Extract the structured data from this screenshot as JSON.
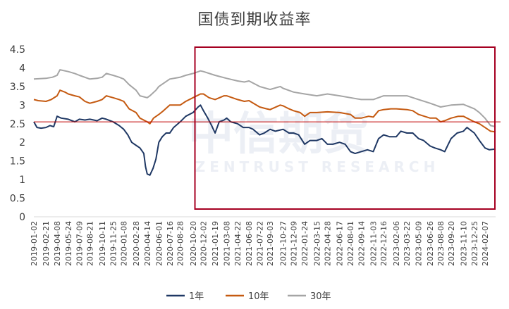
{
  "chart_data": {
    "type": "line",
    "title": "国债到期收益率",
    "xlabel": "",
    "ylabel": "",
    "ylim": [
      0,
      4.5
    ],
    "yticks": [
      "0",
      "0.5",
      "1",
      "1.5",
      "2",
      "2.5",
      "3",
      "3.5",
      "4",
      "4.5"
    ],
    "x_start": "2019-01-02",
    "x_end": "2024-03-22",
    "xtick_labels": [
      "2019-01-02",
      "2019-02-21",
      "2019-04-08",
      "2019-05-24",
      "2019-07-09",
      "2019-08-21",
      "2019-10-11",
      "2019-11-25",
      "2020-01-08",
      "2020-02-28",
      "2020-04-14",
      "2020-06-01",
      "2020-07-16",
      "2020-08-28",
      "2020-10-20",
      "2020-12-02",
      "2021-01-19",
      "2021-03-08",
      "2021-04-22",
      "2021-06-08",
      "2021-07-22",
      "2021-09-03",
      "2021-10-27",
      "2021-12-09",
      "2022-01-24",
      "2022-03-15",
      "2022-04-28",
      "2022-06-17",
      "2022-08-01",
      "2022-09-14",
      "2022-11-03",
      "2022-12-16",
      "2023-02-06",
      "2023-03-22",
      "2023-05-09",
      "2023-06-26",
      "2023-08-08",
      "2023-09-20",
      "2023-11-10",
      "2023-12-25",
      "2024-02-07"
    ],
    "series": [
      {
        "name": "1年",
        "color": "#1f3864",
        "points": [
          [
            "2019-01-02",
            2.55
          ],
          [
            "2019-01-15",
            2.4
          ],
          [
            "2019-02-01",
            2.38
          ],
          [
            "2019-02-21",
            2.4
          ],
          [
            "2019-03-10",
            2.45
          ],
          [
            "2019-03-25",
            2.42
          ],
          [
            "2019-04-08",
            2.7
          ],
          [
            "2019-04-25",
            2.65
          ],
          [
            "2019-05-24",
            2.62
          ],
          [
            "2019-06-20",
            2.55
          ],
          [
            "2019-07-09",
            2.62
          ],
          [
            "2019-08-01",
            2.6
          ],
          [
            "2019-08-21",
            2.62
          ],
          [
            "2019-09-20",
            2.58
          ],
          [
            "2019-10-11",
            2.65
          ],
          [
            "2019-10-28",
            2.62
          ],
          [
            "2019-11-25",
            2.55
          ],
          [
            "2019-12-20",
            2.45
          ],
          [
            "2020-01-08",
            2.35
          ],
          [
            "2020-01-25",
            2.2
          ],
          [
            "2020-02-10",
            2.0
          ],
          [
            "2020-02-28",
            1.92
          ],
          [
            "2020-03-15",
            1.85
          ],
          [
            "2020-03-31",
            1.7
          ],
          [
            "2020-04-07",
            1.35
          ],
          [
            "2020-04-14",
            1.15
          ],
          [
            "2020-04-25",
            1.12
          ],
          [
            "2020-05-08",
            1.3
          ],
          [
            "2020-05-20",
            1.55
          ],
          [
            "2020-06-01",
            2.0
          ],
          [
            "2020-06-15",
            2.15
          ],
          [
            "2020-07-01",
            2.25
          ],
          [
            "2020-07-16",
            2.25
          ],
          [
            "2020-08-01",
            2.4
          ],
          [
            "2020-08-28",
            2.55
          ],
          [
            "2020-09-20",
            2.7
          ],
          [
            "2020-10-20",
            2.8
          ],
          [
            "2020-11-10",
            2.95
          ],
          [
            "2020-11-20",
            3.0
          ],
          [
            "2020-12-02",
            2.85
          ],
          [
            "2020-12-20",
            2.65
          ],
          [
            "2021-01-05",
            2.45
          ],
          [
            "2021-01-19",
            2.25
          ],
          [
            "2021-02-05",
            2.55
          ],
          [
            "2021-02-25",
            2.6
          ],
          [
            "2021-03-08",
            2.65
          ],
          [
            "2021-03-25",
            2.55
          ],
          [
            "2021-04-22",
            2.5
          ],
          [
            "2021-05-15",
            2.4
          ],
          [
            "2021-06-08",
            2.4
          ],
          [
            "2021-06-25",
            2.35
          ],
          [
            "2021-07-22",
            2.2
          ],
          [
            "2021-08-10",
            2.25
          ],
          [
            "2021-09-03",
            2.35
          ],
          [
            "2021-09-25",
            2.3
          ],
          [
            "2021-10-27",
            2.35
          ],
          [
            "2021-11-20",
            2.25
          ],
          [
            "2021-12-09",
            2.25
          ],
          [
            "2021-12-30",
            2.2
          ],
          [
            "2022-01-24",
            1.95
          ],
          [
            "2022-02-15",
            2.05
          ],
          [
            "2022-03-15",
            2.05
          ],
          [
            "2022-04-05",
            2.1
          ],
          [
            "2022-04-28",
            1.95
          ],
          [
            "2022-05-20",
            1.95
          ],
          [
            "2022-06-17",
            2.0
          ],
          [
            "2022-07-10",
            1.95
          ],
          [
            "2022-08-01",
            1.75
          ],
          [
            "2022-08-20",
            1.7
          ],
          [
            "2022-09-14",
            1.75
          ],
          [
            "2022-10-10",
            1.8
          ],
          [
            "2022-11-03",
            1.75
          ],
          [
            "2022-11-25",
            2.1
          ],
          [
            "2022-12-16",
            2.2
          ],
          [
            "2023-01-10",
            2.15
          ],
          [
            "2023-02-06",
            2.15
          ],
          [
            "2023-02-25",
            2.3
          ],
          [
            "2023-03-22",
            2.25
          ],
          [
            "2023-04-15",
            2.25
          ],
          [
            "2023-05-09",
            2.1
          ],
          [
            "2023-05-30",
            2.05
          ],
          [
            "2023-06-26",
            1.9
          ],
          [
            "2023-07-15",
            1.85
          ],
          [
            "2023-08-08",
            1.8
          ],
          [
            "2023-08-25",
            1.75
          ],
          [
            "2023-09-20",
            2.1
          ],
          [
            "2023-10-15",
            2.25
          ],
          [
            "2023-11-10",
            2.3
          ],
          [
            "2023-11-25",
            2.4
          ],
          [
            "2023-12-25",
            2.25
          ],
          [
            "2024-01-15",
            2.05
          ],
          [
            "2024-02-07",
            1.85
          ],
          [
            "2024-02-25",
            1.8
          ],
          [
            "2024-03-22",
            1.82
          ]
        ]
      },
      {
        "name": "10年",
        "color": "#c55a11",
        "points": [
          [
            "2019-01-02",
            3.15
          ],
          [
            "2019-01-20",
            3.12
          ],
          [
            "2019-02-21",
            3.1
          ],
          [
            "2019-03-15",
            3.15
          ],
          [
            "2019-04-08",
            3.25
          ],
          [
            "2019-04-20",
            3.4
          ],
          [
            "2019-05-10",
            3.35
          ],
          [
            "2019-05-24",
            3.3
          ],
          [
            "2019-06-20",
            3.25
          ],
          [
            "2019-07-09",
            3.22
          ],
          [
            "2019-08-01",
            3.1
          ],
          [
            "2019-08-21",
            3.05
          ],
          [
            "2019-09-20",
            3.1
          ],
          [
            "2019-10-11",
            3.15
          ],
          [
            "2019-10-28",
            3.25
          ],
          [
            "2019-11-25",
            3.2
          ],
          [
            "2019-12-20",
            3.15
          ],
          [
            "2020-01-08",
            3.1
          ],
          [
            "2020-01-30",
            2.9
          ],
          [
            "2020-02-28",
            2.8
          ],
          [
            "2020-03-15",
            2.65
          ],
          [
            "2020-04-14",
            2.55
          ],
          [
            "2020-04-25",
            2.5
          ],
          [
            "2020-05-10",
            2.65
          ],
          [
            "2020-06-01",
            2.75
          ],
          [
            "2020-06-20",
            2.85
          ],
          [
            "2020-07-16",
            3.0
          ],
          [
            "2020-08-28",
            3.0
          ],
          [
            "2020-09-20",
            3.1
          ],
          [
            "2020-10-20",
            3.2
          ],
          [
            "2020-11-20",
            3.3
          ],
          [
            "2020-12-02",
            3.3
          ],
          [
            "2020-12-25",
            3.2
          ],
          [
            "2021-01-19",
            3.15
          ],
          [
            "2021-02-25",
            3.25
          ],
          [
            "2021-03-08",
            3.25
          ],
          [
            "2021-04-22",
            3.15
          ],
          [
            "2021-05-20",
            3.1
          ],
          [
            "2021-06-08",
            3.12
          ],
          [
            "2021-07-22",
            2.95
          ],
          [
            "2021-08-20",
            2.9
          ],
          [
            "2021-09-03",
            2.88
          ],
          [
            "2021-10-15",
            3.0
          ],
          [
            "2021-10-27",
            2.98
          ],
          [
            "2021-11-20",
            2.9
          ],
          [
            "2021-12-09",
            2.85
          ],
          [
            "2022-01-05",
            2.8
          ],
          [
            "2022-01-24",
            2.7
          ],
          [
            "2022-02-15",
            2.8
          ],
          [
            "2022-03-15",
            2.8
          ],
          [
            "2022-04-28",
            2.82
          ],
          [
            "2022-06-17",
            2.8
          ],
          [
            "2022-08-01",
            2.75
          ],
          [
            "2022-08-20",
            2.65
          ],
          [
            "2022-09-14",
            2.65
          ],
          [
            "2022-10-15",
            2.7
          ],
          [
            "2022-11-03",
            2.68
          ],
          [
            "2022-11-25",
            2.85
          ],
          [
            "2022-12-16",
            2.88
          ],
          [
            "2023-01-15",
            2.9
          ],
          [
            "2023-02-06",
            2.9
          ],
          [
            "2023-03-22",
            2.88
          ],
          [
            "2023-04-15",
            2.85
          ],
          [
            "2023-05-09",
            2.75
          ],
          [
            "2023-06-26",
            2.65
          ],
          [
            "2023-07-20",
            2.65
          ],
          [
            "2023-08-08",
            2.55
          ],
          [
            "2023-08-25",
            2.58
          ],
          [
            "2023-09-20",
            2.65
          ],
          [
            "2023-10-20",
            2.7
          ],
          [
            "2023-11-10",
            2.7
          ],
          [
            "2023-12-25",
            2.55
          ],
          [
            "2024-01-15",
            2.5
          ],
          [
            "2024-02-07",
            2.4
          ],
          [
            "2024-03-01",
            2.3
          ],
          [
            "2024-03-22",
            2.28
          ]
        ]
      },
      {
        "name": "30年",
        "color": "#a5a5a5",
        "points": [
          [
            "2019-01-02",
            3.7
          ],
          [
            "2019-02-21",
            3.72
          ],
          [
            "2019-03-20",
            3.75
          ],
          [
            "2019-04-08",
            3.8
          ],
          [
            "2019-04-20",
            3.95
          ],
          [
            "2019-05-24",
            3.9
          ],
          [
            "2019-06-20",
            3.85
          ],
          [
            "2019-07-09",
            3.8
          ],
          [
            "2019-08-21",
            3.7
          ],
          [
            "2019-09-20",
            3.72
          ],
          [
            "2019-10-11",
            3.75
          ],
          [
            "2019-10-28",
            3.85
          ],
          [
            "2019-11-25",
            3.8
          ],
          [
            "2019-12-20",
            3.75
          ],
          [
            "2020-01-08",
            3.7
          ],
          [
            "2020-01-30",
            3.55
          ],
          [
            "2020-02-28",
            3.4
          ],
          [
            "2020-03-15",
            3.25
          ],
          [
            "2020-04-14",
            3.2
          ],
          [
            "2020-04-25",
            3.25
          ],
          [
            "2020-05-20",
            3.4
          ],
          [
            "2020-06-01",
            3.5
          ],
          [
            "2020-07-16",
            3.7
          ],
          [
            "2020-08-28",
            3.75
          ],
          [
            "2020-09-20",
            3.8
          ],
          [
            "2020-10-20",
            3.85
          ],
          [
            "2020-11-20",
            3.92
          ],
          [
            "2020-12-02",
            3.9
          ],
          [
            "2021-01-19",
            3.8
          ],
          [
            "2021-03-08",
            3.72
          ],
          [
            "2021-04-22",
            3.65
          ],
          [
            "2021-05-20",
            3.62
          ],
          [
            "2021-06-08",
            3.65
          ],
          [
            "2021-07-22",
            3.5
          ],
          [
            "2021-09-03",
            3.42
          ],
          [
            "2021-10-15",
            3.5
          ],
          [
            "2021-10-27",
            3.45
          ],
          [
            "2021-12-09",
            3.35
          ],
          [
            "2022-01-24",
            3.3
          ],
          [
            "2022-03-15",
            3.25
          ],
          [
            "2022-04-28",
            3.3
          ],
          [
            "2022-06-17",
            3.25
          ],
          [
            "2022-08-01",
            3.2
          ],
          [
            "2022-09-14",
            3.15
          ],
          [
            "2022-11-03",
            3.15
          ],
          [
            "2022-12-16",
            3.25
          ],
          [
            "2023-02-06",
            3.25
          ],
          [
            "2023-03-22",
            3.25
          ],
          [
            "2023-05-09",
            3.15
          ],
          [
            "2023-06-26",
            3.05
          ],
          [
            "2023-08-08",
            2.95
          ],
          [
            "2023-09-20",
            3.0
          ],
          [
            "2023-11-10",
            3.02
          ],
          [
            "2023-12-25",
            2.9
          ],
          [
            "2024-01-15",
            2.8
          ],
          [
            "2024-02-07",
            2.65
          ],
          [
            "2024-03-01",
            2.45
          ],
          [
            "2024-03-22",
            2.42
          ]
        ]
      }
    ],
    "reference_line": {
      "y": 2.55,
      "color": "#c00000"
    },
    "highlight_box": {
      "from": "2020-10-28",
      "to": "2024-03-22",
      "ymin": 0,
      "ymax": 4.5,
      "color": "#a50021"
    },
    "legend": {
      "position": "bottom",
      "entries": [
        "1年",
        "10年",
        "30年"
      ]
    },
    "watermark": {
      "text_main": "中信期货",
      "text_sub": "ZENTRUST RESEARCH"
    }
  }
}
